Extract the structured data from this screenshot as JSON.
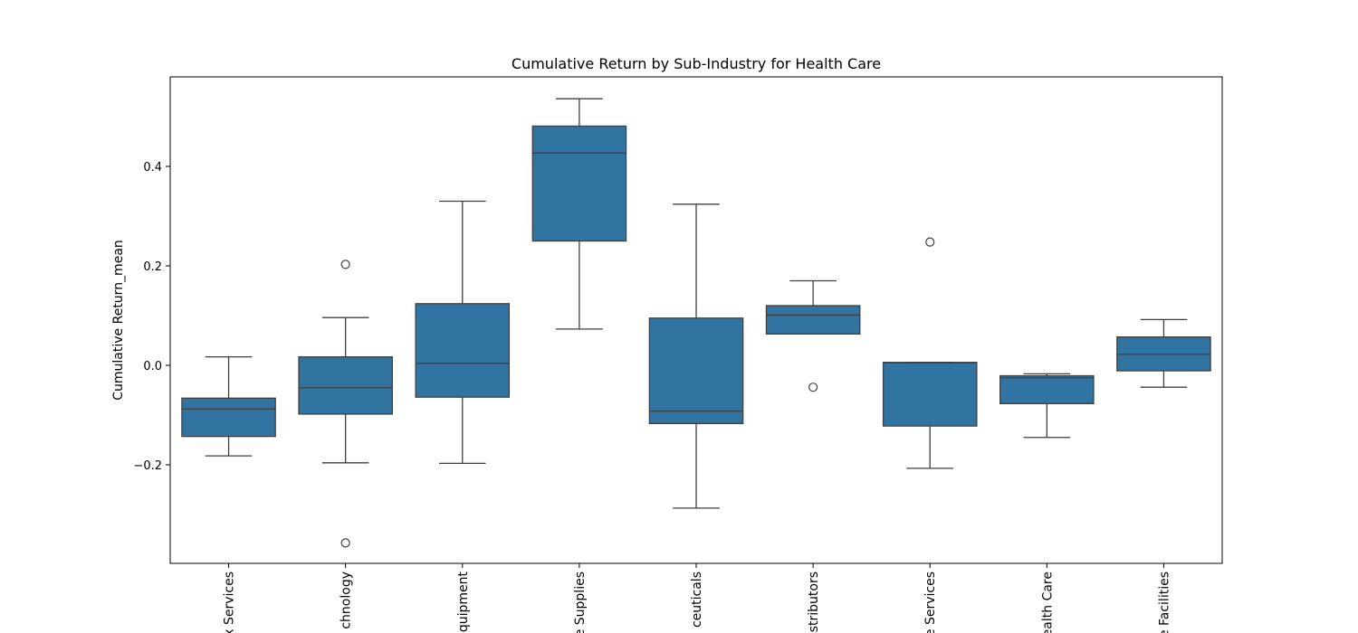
{
  "chart_data": {
    "type": "box",
    "title": "Cumulative Return by Sub-Industry for Health Care",
    "xlabel": "",
    "ylabel": "Cumulative Return_mean",
    "ylim": [
      -0.4,
      0.54
    ],
    "yticks": [
      -0.2,
      0.0,
      0.2,
      0.4
    ],
    "ytick_labels": [
      "−0.2",
      "0.0",
      "0.2",
      "0.4"
    ],
    "grid": false,
    "color": "#3274a1",
    "edge_color": "#3f3f3f",
    "categories": [
      "x Services",
      "chnology",
      "quipment",
      "e Supplies",
      "ceuticals",
      "stributors",
      "e Services",
      "ealth Care",
      "e Facilities"
    ],
    "boxes": [
      {
        "whisker_low": -0.182,
        "q1": -0.143,
        "median": -0.088,
        "q3": -0.066,
        "whisker_high": 0.017,
        "outliers": []
      },
      {
        "whisker_low": -0.196,
        "q1": -0.098,
        "median": -0.045,
        "q3": 0.017,
        "whisker_high": 0.096,
        "outliers": [
          0.203,
          -0.357
        ]
      },
      {
        "whisker_low": -0.197,
        "q1": -0.064,
        "median": 0.004,
        "q3": 0.124,
        "whisker_high": 0.33,
        "outliers": []
      },
      {
        "whisker_low": 0.073,
        "q1": 0.25,
        "median": 0.427,
        "q3": 0.481,
        "whisker_high": 0.536,
        "outliers": []
      },
      {
        "whisker_low": -0.287,
        "q1": -0.117,
        "median": -0.092,
        "q3": 0.095,
        "whisker_high": 0.324,
        "outliers": []
      },
      {
        "whisker_low": 0.063,
        "q1": 0.063,
        "median": 0.101,
        "q3": 0.12,
        "whisker_high": 0.17,
        "outliers": [
          -0.044
        ]
      },
      {
        "whisker_low": -0.207,
        "q1": -0.122,
        "median": 0.005,
        "q3": 0.006,
        "whisker_high": 0.006,
        "outliers": [
          0.248
        ]
      },
      {
        "whisker_low": -0.145,
        "q1": -0.077,
        "median": -0.025,
        "q3": -0.021,
        "whisker_high": -0.017,
        "outliers": []
      },
      {
        "whisker_low": -0.044,
        "q1": -0.011,
        "median": 0.022,
        "q3": 0.057,
        "whisker_high": 0.092,
        "outliers": []
      }
    ]
  }
}
